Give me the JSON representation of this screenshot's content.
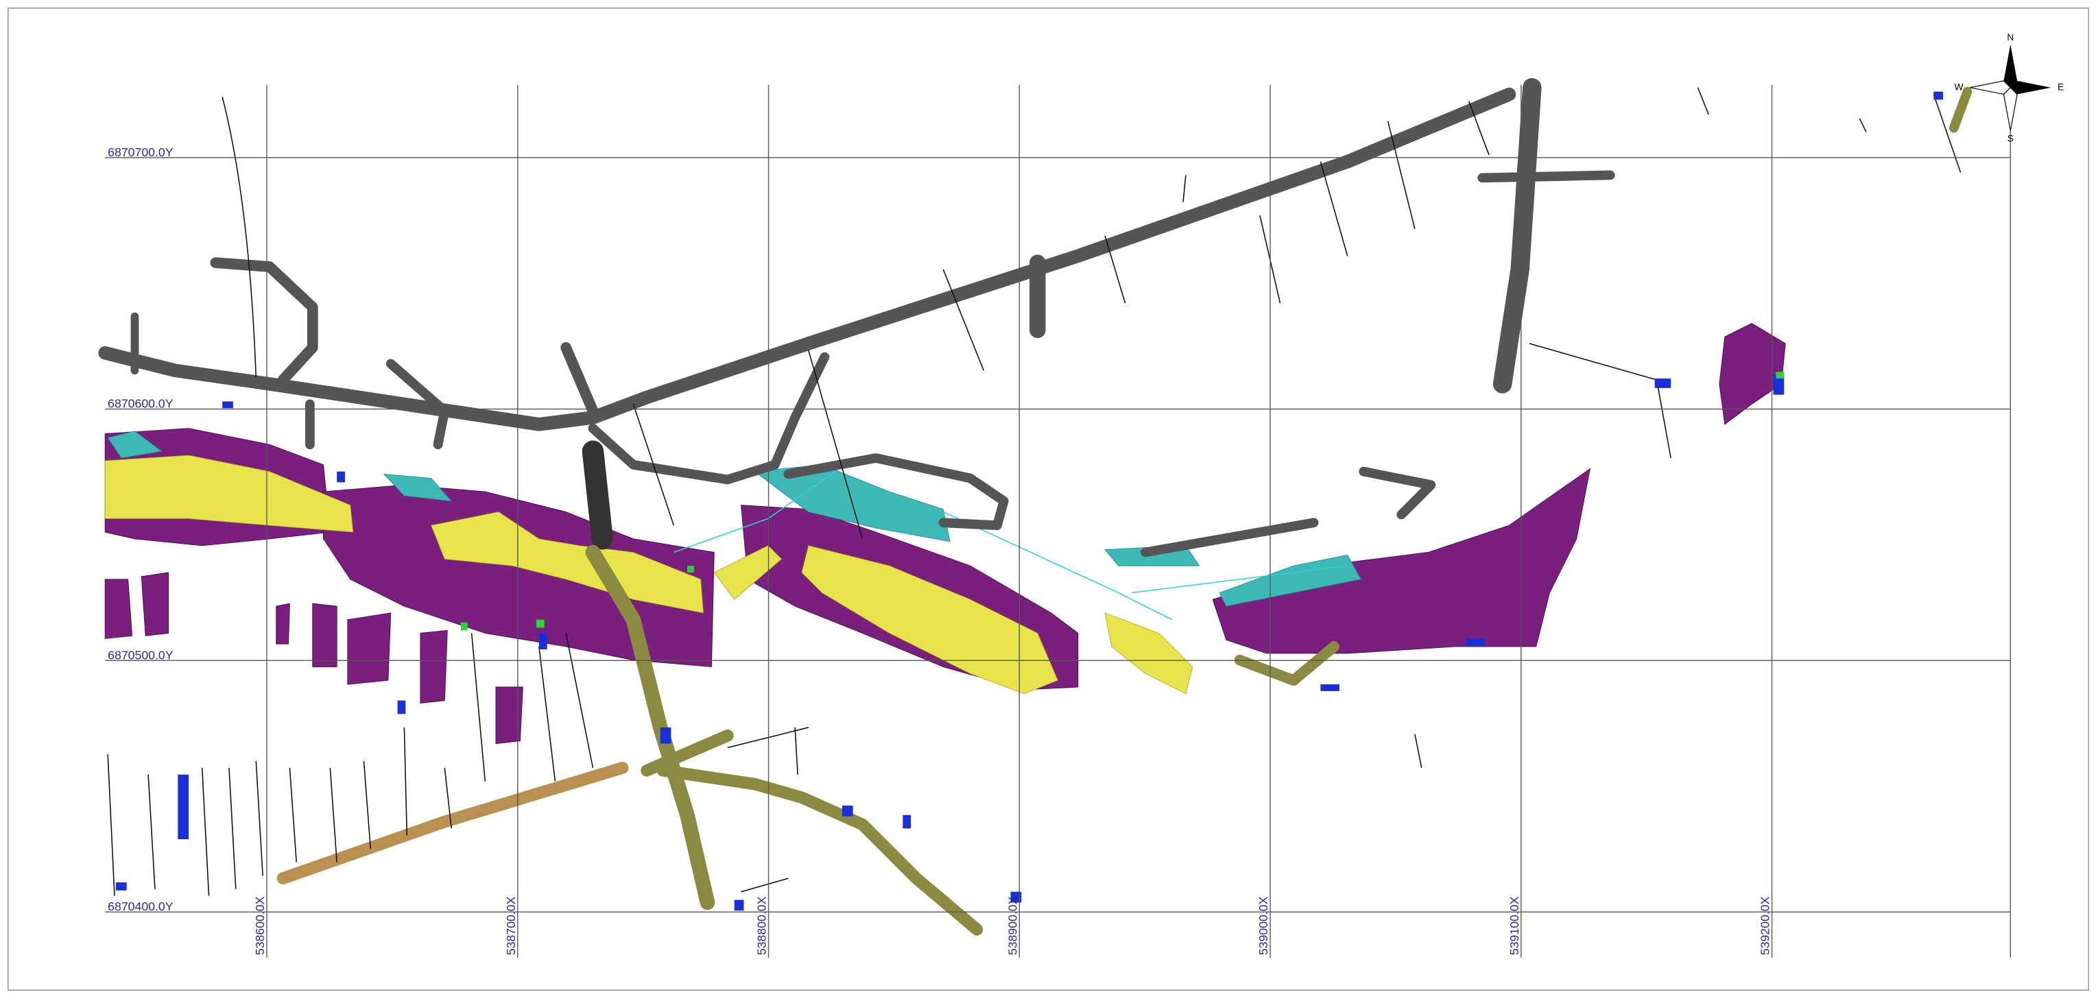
{
  "map": {
    "xticks": [
      {
        "value": 538600,
        "label": "538600.0X"
      },
      {
        "value": 538700,
        "label": "538700.0X"
      },
      {
        "value": 538800,
        "label": "538800.0X"
      },
      {
        "value": 538900,
        "label": "538900.0X"
      },
      {
        "value": 539000,
        "label": "539000.0X"
      },
      {
        "value": 539100,
        "label": "539100.0X"
      },
      {
        "value": 539200,
        "label": "539200.0X"
      }
    ],
    "yticks": [
      {
        "value": 6870700,
        "label": "6870700.0Y"
      },
      {
        "value": 6870600,
        "label": "6870600.0Y"
      },
      {
        "value": 6870500,
        "label": "6870500.0Y"
      },
      {
        "value": 6870400,
        "label": "6870400.0Y"
      }
    ],
    "xlim": [
      538600,
      539200
    ],
    "ylim": [
      6870400,
      6870700
    ],
    "compass": {
      "n": "N",
      "e": "E",
      "s": "S",
      "w": "W"
    }
  }
}
